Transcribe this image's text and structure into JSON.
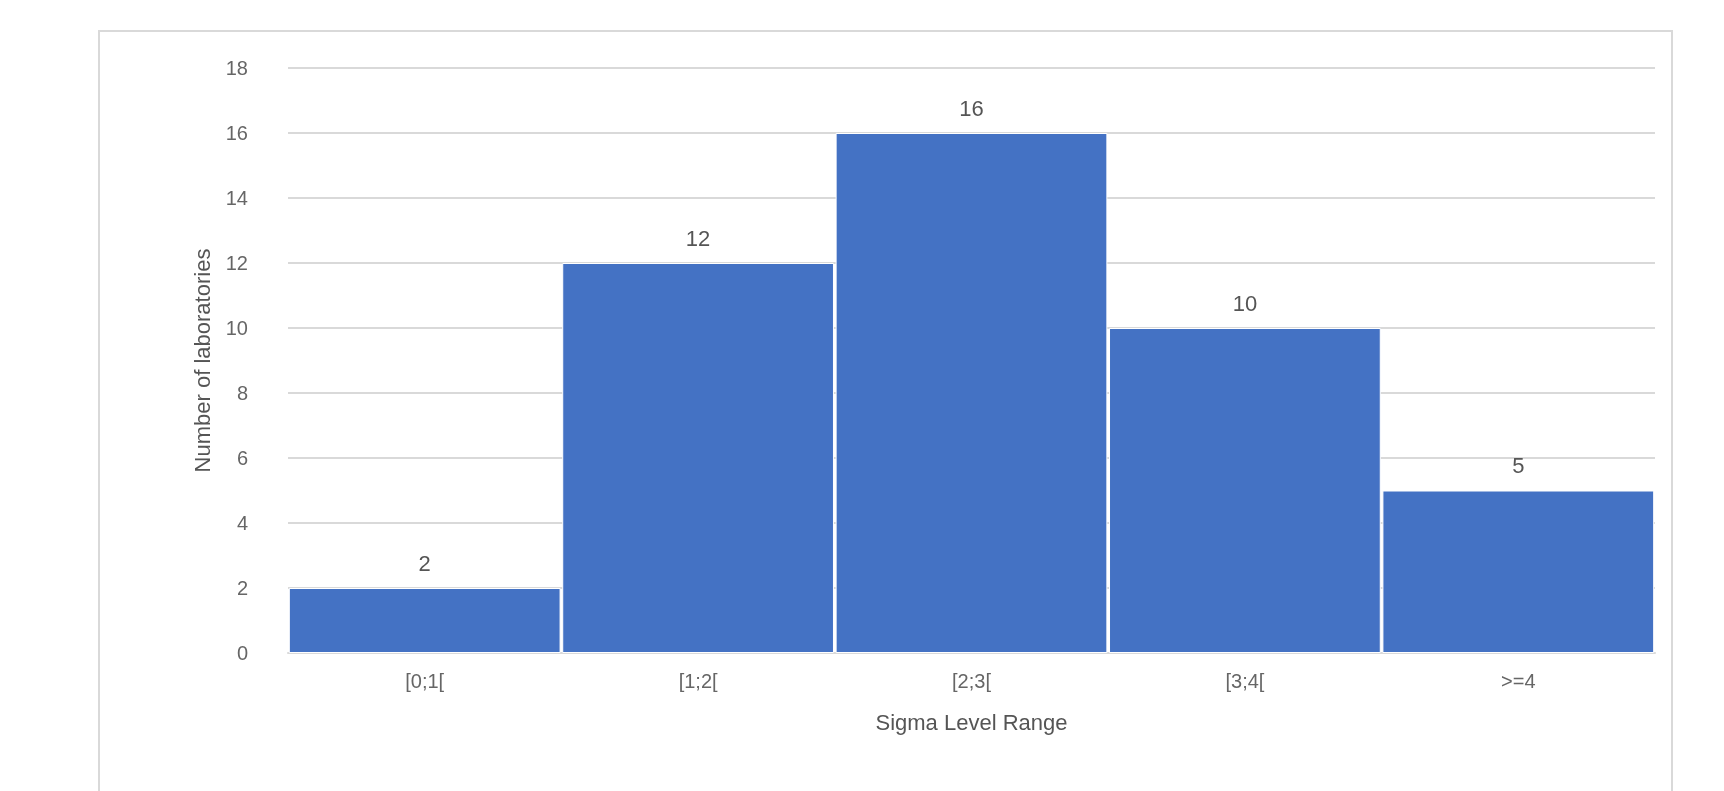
{
  "chart_data": {
    "type": "bar",
    "xlabel": "Sigma Level Range",
    "ylabel": "Number of laboratories",
    "categories": [
      "[0;1[",
      "[1;2[",
      "[2;3[",
      "[3;4[",
      ">=4"
    ],
    "values": [
      2,
      12,
      16,
      10,
      5
    ],
    "color": "#4472c4",
    "ylim": [
      0,
      18
    ],
    "yticks": [
      0,
      2,
      4,
      6,
      8,
      10,
      12,
      14,
      16,
      18
    ],
    "grid": "y",
    "data_labels": true
  }
}
